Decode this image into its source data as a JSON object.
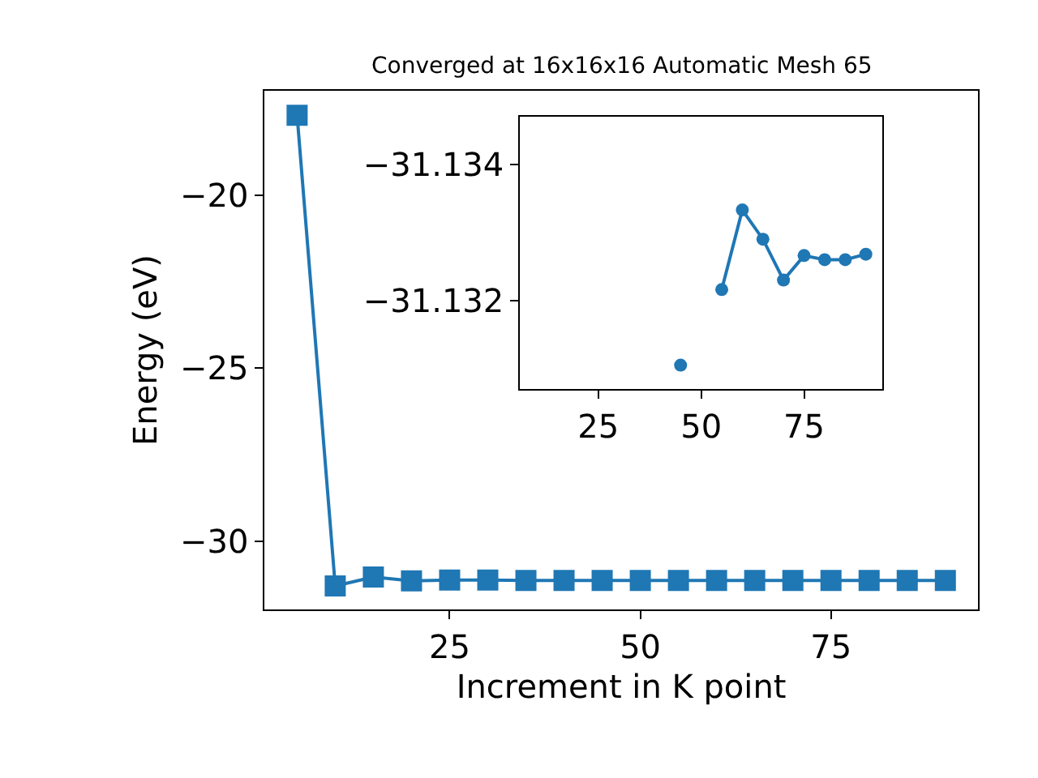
{
  "chart_data": [
    {
      "type": "line",
      "title": "Converged at 16x16x16 Automatic Mesh 65",
      "xlabel": "Increment in K point",
      "ylabel": "Energy (eV)",
      "x": [
        5,
        10,
        15,
        20,
        25,
        30,
        35,
        40,
        45,
        50,
        55,
        60,
        65,
        70,
        75,
        80,
        85,
        90
      ],
      "series": [
        {
          "color": "#1f77b4",
          "values": [
            -17.7,
            -31.29,
            -31.03,
            -31.14,
            -31.12,
            -31.12,
            -31.13,
            -31.13,
            -31.13,
            -31.13,
            -31.13,
            -31.13,
            -31.13,
            -31.13,
            -31.13,
            -31.13,
            -31.13,
            -31.13
          ]
        }
      ],
      "xlim": [
        0.75,
        94.25
      ],
      "ylim": [
        -31.96,
        -17.0
      ],
      "xticks": [
        25,
        50,
        75
      ],
      "yticks": [
        -20,
        -25,
        -30
      ],
      "marker": "square"
    },
    {
      "type": "line",
      "x": [
        45,
        50,
        55,
        60,
        65,
        70,
        75,
        80,
        85,
        90
      ],
      "series": [
        {
          "color": "#1f77b4",
          "values": [
            -31.13105,
            null,
            -31.13216,
            -31.13333,
            -31.1329,
            -31.1323,
            -31.13266,
            -31.1326,
            -31.1326,
            -31.13268
          ]
        }
      ],
      "xlim": [
        6,
        94
      ],
      "ylim": [
        -31.1307,
        -31.1347
      ],
      "xticks": [
        25,
        50,
        75
      ],
      "yticks": [
        -31.134,
        -31.132
      ],
      "marker": "circle"
    }
  ]
}
